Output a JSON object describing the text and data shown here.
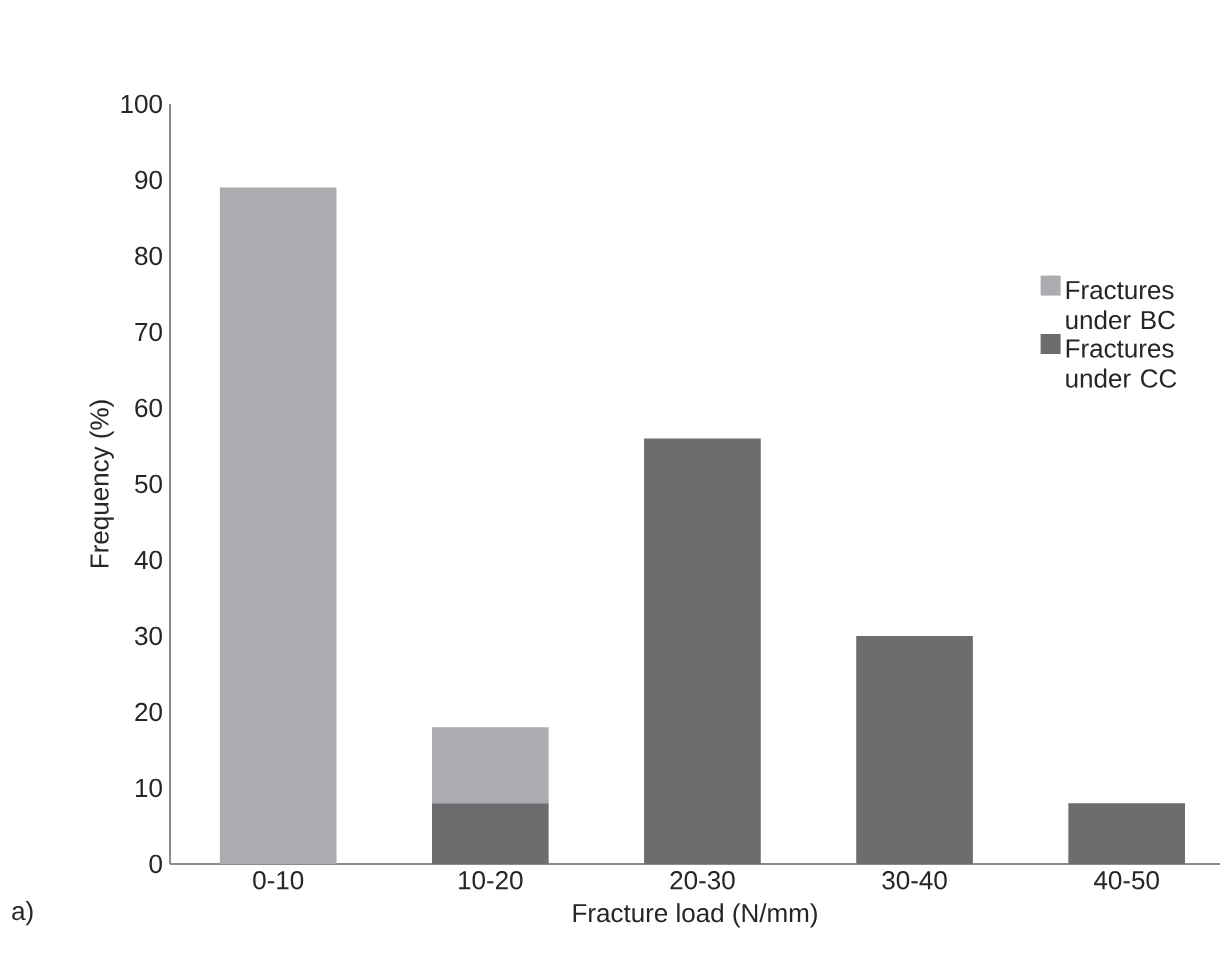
{
  "chart_data": {
    "type": "bar",
    "stacked": true,
    "xlabel": "Fracture load (N/mm)",
    "ylabel": "Frequency (%)",
    "categories": [
      "0-10",
      "10-20",
      "20-30",
      "30-40",
      "40-50"
    ],
    "series": [
      {
        "name": "Fractures under CC",
        "color": "#6d6d70",
        "values": [
          null,
          8,
          56,
          30,
          8
        ]
      },
      {
        "name": "Fractures under BC",
        "color": "#abacb0",
        "values": [
          89,
          10,
          null,
          null,
          null
        ]
      }
    ],
    "ylim": [
      0,
      100
    ],
    "yticks": [
      0,
      10,
      20,
      30,
      40,
      50,
      60,
      70,
      80,
      90,
      100
    ],
    "grid": false,
    "legend": "right",
    "annotations": [
      "a)"
    ]
  }
}
